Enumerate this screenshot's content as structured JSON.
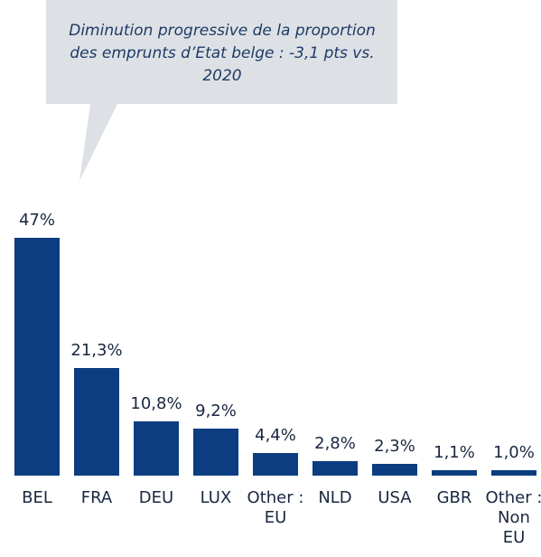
{
  "chart_data": {
    "type": "bar",
    "annotation": "Diminution progressive de la proportion des emprunts d’Etat belge : -3,1 pts vs. 2020",
    "categories": [
      "BEL",
      "FRA",
      "DEU",
      "LUX",
      "Other : EU",
      "NLD",
      "USA",
      "GBR",
      "Other : Non EU"
    ],
    "values": [
      47,
      21.3,
      10.8,
      9.2,
      4.4,
      2.8,
      2.3,
      1.1,
      1.0
    ],
    "value_labels": [
      "47%",
      "21,3%",
      "10,8%",
      "9,2%",
      "4,4%",
      "2,8%",
      "2,3%",
      "1,1%",
      "1,0%"
    ],
    "color": "#0b3d80"
  }
}
